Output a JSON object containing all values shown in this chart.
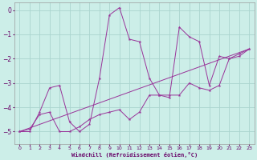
{
  "xlabel": "Windchill (Refroidissement éolien,°C)",
  "bg_color": "#cceee8",
  "grid_color": "#aad4ce",
  "line_color": "#993399",
  "xlim": [
    -0.5,
    23.5
  ],
  "ylim": [
    -5.5,
    0.3
  ],
  "yticks": [
    0,
    -1,
    -2,
    -3,
    -4,
    -5
  ],
  "xticks": [
    0,
    1,
    2,
    3,
    4,
    5,
    6,
    7,
    8,
    9,
    10,
    11,
    12,
    13,
    14,
    15,
    16,
    17,
    18,
    19,
    20,
    21,
    22,
    23
  ],
  "series1_x": [
    0,
    1,
    2,
    3,
    4,
    5,
    6,
    7,
    8,
    9,
    10,
    11,
    12,
    13,
    14,
    15,
    16,
    17,
    18,
    19,
    20,
    21,
    22,
    23
  ],
  "series1_y": [
    -5.0,
    -5.0,
    -4.2,
    -3.2,
    -3.1,
    -4.6,
    -5.0,
    -4.7,
    -2.8,
    -0.2,
    0.1,
    -1.2,
    -1.3,
    -2.8,
    -3.5,
    -3.6,
    -0.7,
    -1.1,
    -1.3,
    -3.1,
    -1.9,
    -2.0,
    -1.8,
    -1.6
  ],
  "series2_x": [
    0,
    1,
    2,
    3,
    4,
    5,
    6,
    7,
    8,
    9,
    10,
    11,
    12,
    13,
    14,
    15,
    16,
    17,
    18,
    19,
    20,
    21,
    22,
    23
  ],
  "series2_y": [
    -5.0,
    -4.9,
    -4.3,
    -4.2,
    -5.0,
    -5.0,
    -4.8,
    -4.5,
    -4.3,
    -4.2,
    -4.1,
    -4.5,
    -4.2,
    -3.5,
    -3.5,
    -3.5,
    -3.5,
    -3.0,
    -3.2,
    -3.3,
    -3.1,
    -2.0,
    -1.9,
    -1.6
  ],
  "series3_x": [
    0,
    23
  ],
  "series3_y": [
    -5.0,
    -1.6
  ]
}
